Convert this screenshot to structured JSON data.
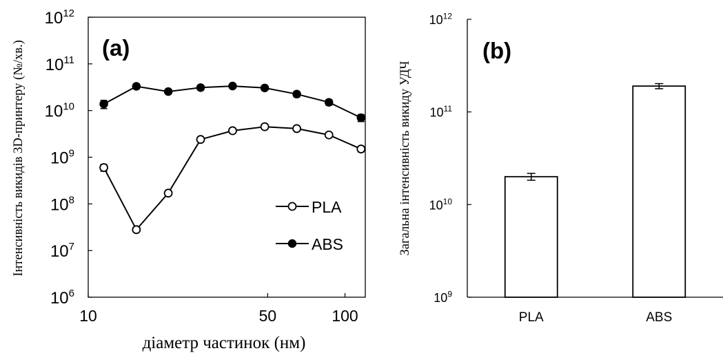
{
  "chart_data": [
    {
      "panel_label": "(a)",
      "type": "line",
      "xscale": "log",
      "yscale": "log",
      "xlabel": "діаметр частинок (нм)",
      "ylabel": "Інтенсивність викидів 3D-принтеру (№/хв.)",
      "xlim": [
        10,
        120
      ],
      "ylim": [
        1000000,
        1000000000000
      ],
      "xticks": [
        10,
        50,
        100
      ],
      "xtick_labels": [
        "10",
        "50",
        "100"
      ],
      "yticks": [
        1000000,
        10000000,
        100000000,
        1000000000,
        10000000000,
        100000000000,
        1000000000000
      ],
      "ytick_labels": [
        {
          "base": "10",
          "exp": "6"
        },
        {
          "base": "10",
          "exp": "7"
        },
        {
          "base": "10",
          "exp": "8"
        },
        {
          "base": "10",
          "exp": "9"
        },
        {
          "base": "10",
          "exp": "10"
        },
        {
          "base": "10",
          "exp": "11"
        },
        {
          "base": "10",
          "exp": "12"
        }
      ],
      "grid": false,
      "legend_position": "lower-right",
      "series": [
        {
          "name": "PLA",
          "marker": "open-circle",
          "color": "#000000",
          "x": [
            11.5,
            15.4,
            20.5,
            27.4,
            36.5,
            48.7,
            64.9,
            86.6,
            115.5
          ],
          "y": [
            600000000,
            28000000,
            170000000,
            2400000000,
            3700000000,
            4500000000,
            4100000000,
            3000000000,
            1500000000
          ],
          "error_low": [
            500000000,
            26000000,
            155000000,
            2250000000,
            3500000000,
            4250000000,
            3850000000,
            2800000000,
            1300000000
          ],
          "error_high": [
            700000000,
            30000000,
            185000000,
            2550000000,
            3900000000,
            4750000000,
            4350000000,
            3200000000,
            1700000000
          ]
        },
        {
          "name": "ABS",
          "marker": "filled-circle",
          "color": "#000000",
          "x": [
            11.5,
            15.4,
            20.5,
            27.4,
            36.5,
            48.7,
            64.9,
            86.6,
            115.5
          ],
          "y": [
            13800000000,
            33000000000,
            25500000000,
            31000000000,
            33500000000,
            30500000000,
            22500000000,
            15000000000,
            7000000000
          ],
          "error_low": [
            11000000000,
            29000000000,
            23000000000,
            28000000000,
            30500000000,
            27500000000,
            19500000000,
            13000000000,
            5800000000
          ],
          "error_high": [
            16500000000,
            37000000000,
            28000000000,
            34000000000,
            36500000000,
            33500000000,
            25500000000,
            17000000000,
            8200000000
          ]
        }
      ]
    },
    {
      "panel_label": "(b)",
      "type": "bar",
      "yscale": "log",
      "ylabel": "Загальна інтенсивність викиду УДЧ",
      "categories": [
        "PLA",
        "ABS"
      ],
      "values": [
        20000000000,
        190000000000
      ],
      "error_low": [
        18300000000,
        178000000000
      ],
      "error_high": [
        21700000000,
        202000000000
      ],
      "ylim": [
        1000000000,
        1000000000000
      ],
      "yticks": [
        1000000000,
        10000000000,
        100000000000,
        1000000000000
      ],
      "ytick_labels": [
        {
          "base": "10",
          "exp": "9"
        },
        {
          "base": "10",
          "exp": "10"
        },
        {
          "base": "10",
          "exp": "11"
        },
        {
          "base": "10",
          "exp": "12"
        }
      ],
      "bar_fill": "#ffffff",
      "bar_stroke": "#000000",
      "grid": false
    }
  ]
}
